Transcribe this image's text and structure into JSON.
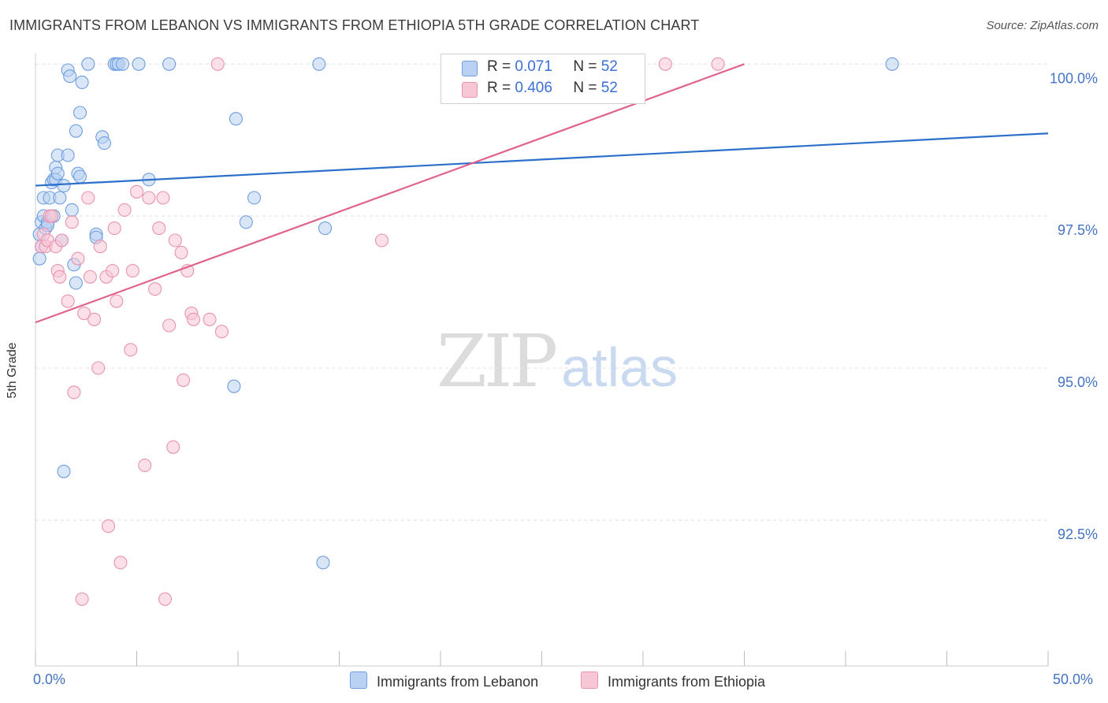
{
  "title": "IMMIGRANTS FROM LEBANON VS IMMIGRANTS FROM ETHIOPIA 5TH GRADE CORRELATION CHART",
  "source": "Source: ZipAtlas.com",
  "watermark": {
    "zip": "ZIP",
    "atlas": "atlas"
  },
  "legend": {
    "r_label": "R =",
    "n_label": "N =",
    "rows": [
      {
        "r": "0.071",
        "n": "52"
      },
      {
        "r": "0.406",
        "n": "52"
      }
    ]
  },
  "x_axis": {
    "min_label": "0.0%",
    "max_label": "50.0%"
  },
  "colors": {
    "lebanon_fill": "#b9d2f3",
    "lebanon_stroke": "#6f9ee0",
    "lebanon_line": "#2c6fcb",
    "ethiopia_fill": "#f8c7d6",
    "ethiopia_stroke": "#e993b0",
    "ethiopia_line": "#e0628f",
    "grid": "#e0e0e0",
    "tick_text": "#4472c4"
  },
  "chart_data": {
    "type": "scatter",
    "title": "IMMIGRANTS FROM LEBANON VS IMMIGRANTS FROM ETHIOPIA 5TH GRADE CORRELATION CHART",
    "xlabel": "",
    "ylabel": "5th Grade",
    "xlim": [
      0,
      50
    ],
    "ylim": [
      90.1,
      100.25
    ],
    "y_ticks": [
      {
        "value": 100.0,
        "label": "100.0%"
      },
      {
        "value": 97.5,
        "label": "97.5%"
      },
      {
        "value": 95.0,
        "label": "95.0%"
      },
      {
        "value": 92.5,
        "label": "92.5%"
      }
    ],
    "x_ticks": [
      0,
      5,
      10,
      15,
      20,
      25,
      30,
      35,
      40,
      45,
      50
    ],
    "series": [
      {
        "name": "Immigrants from Lebanon",
        "r": 0.071,
        "n": 52,
        "trend": {
          "x": [
            0,
            50
          ],
          "y": [
            98.0,
            98.86
          ]
        },
        "points": [
          [
            0.2,
            97.2
          ],
          [
            0.2,
            96.8
          ],
          [
            0.3,
            97.4
          ],
          [
            0.3,
            97.0
          ],
          [
            0.4,
            97.8
          ],
          [
            0.4,
            97.5
          ],
          [
            0.5,
            97.3
          ],
          [
            0.6,
            97.4
          ],
          [
            0.7,
            97.8
          ],
          [
            0.8,
            98.05
          ],
          [
            0.9,
            97.5
          ],
          [
            0.9,
            98.1
          ],
          [
            1.0,
            98.1
          ],
          [
            1.0,
            98.3
          ],
          [
            1.1,
            98.2
          ],
          [
            1.1,
            98.5
          ],
          [
            1.2,
            97.8
          ],
          [
            1.3,
            97.1
          ],
          [
            1.4,
            98.0
          ],
          [
            1.6,
            98.5
          ],
          [
            1.6,
            99.9
          ],
          [
            1.7,
            99.8
          ],
          [
            1.8,
            97.6
          ],
          [
            1.9,
            96.7
          ],
          [
            2.0,
            98.9
          ],
          [
            2.0,
            96.4
          ],
          [
            2.1,
            98.2
          ],
          [
            2.2,
            98.15
          ],
          [
            2.2,
            99.2
          ],
          [
            2.3,
            99.7
          ],
          [
            2.6,
            100.0
          ],
          [
            3.0,
            97.2
          ],
          [
            3.0,
            97.15
          ],
          [
            3.3,
            98.8
          ],
          [
            3.4,
            98.7
          ],
          [
            3.9,
            100.0
          ],
          [
            4.0,
            100.0
          ],
          [
            4.1,
            100.0
          ],
          [
            4.3,
            100.0
          ],
          [
            5.1,
            100.0
          ],
          [
            5.6,
            98.1
          ],
          [
            6.6,
            100.0
          ],
          [
            9.8,
            94.7
          ],
          [
            9.9,
            99.1
          ],
          [
            10.4,
            97.4
          ],
          [
            10.8,
            97.8
          ],
          [
            14.0,
            100.0
          ],
          [
            14.3,
            97.3
          ],
          [
            14.2,
            91.8
          ],
          [
            42.3,
            100.0
          ],
          [
            1.4,
            93.3
          ],
          [
            0.6,
            97.35
          ]
        ]
      },
      {
        "name": "Immigrants from Ethiopia",
        "r": 0.406,
        "n": 52,
        "trend": {
          "x": [
            0,
            35
          ],
          "y": [
            95.75,
            100.0
          ]
        },
        "points": [
          [
            0.3,
            97.0
          ],
          [
            0.4,
            97.2
          ],
          [
            0.5,
            97.0
          ],
          [
            0.6,
            97.1
          ],
          [
            0.7,
            97.5
          ],
          [
            0.8,
            97.5
          ],
          [
            1.0,
            97.0
          ],
          [
            1.1,
            96.6
          ],
          [
            1.2,
            96.5
          ],
          [
            1.3,
            97.1
          ],
          [
            1.6,
            96.1
          ],
          [
            1.8,
            97.4
          ],
          [
            1.9,
            94.6
          ],
          [
            2.1,
            96.8
          ],
          [
            2.4,
            95.9
          ],
          [
            2.6,
            97.8
          ],
          [
            2.7,
            96.5
          ],
          [
            2.9,
            95.8
          ],
          [
            3.1,
            95.0
          ],
          [
            3.2,
            97.0
          ],
          [
            3.5,
            96.5
          ],
          [
            3.6,
            92.4
          ],
          [
            3.8,
            96.6
          ],
          [
            3.9,
            97.3
          ],
          [
            4.0,
            96.1
          ],
          [
            4.2,
            91.8
          ],
          [
            4.4,
            97.6
          ],
          [
            4.7,
            95.3
          ],
          [
            4.8,
            96.6
          ],
          [
            5.0,
            97.9
          ],
          [
            5.4,
            93.4
          ],
          [
            5.6,
            97.8
          ],
          [
            5.9,
            96.3
          ],
          [
            6.1,
            97.3
          ],
          [
            6.3,
            97.8
          ],
          [
            6.4,
            91.2
          ],
          [
            6.6,
            95.7
          ],
          [
            6.8,
            93.7
          ],
          [
            6.9,
            97.1
          ],
          [
            7.2,
            96.9
          ],
          [
            7.3,
            94.8
          ],
          [
            7.5,
            96.6
          ],
          [
            7.7,
            95.9
          ],
          [
            7.8,
            95.8
          ],
          [
            8.6,
            95.8
          ],
          [
            9.0,
            100.0
          ],
          [
            9.2,
            95.6
          ],
          [
            17.1,
            97.1
          ],
          [
            23.2,
            100.0
          ],
          [
            31.1,
            100.0
          ],
          [
            33.7,
            100.0
          ],
          [
            2.3,
            91.2
          ]
        ]
      }
    ]
  }
}
